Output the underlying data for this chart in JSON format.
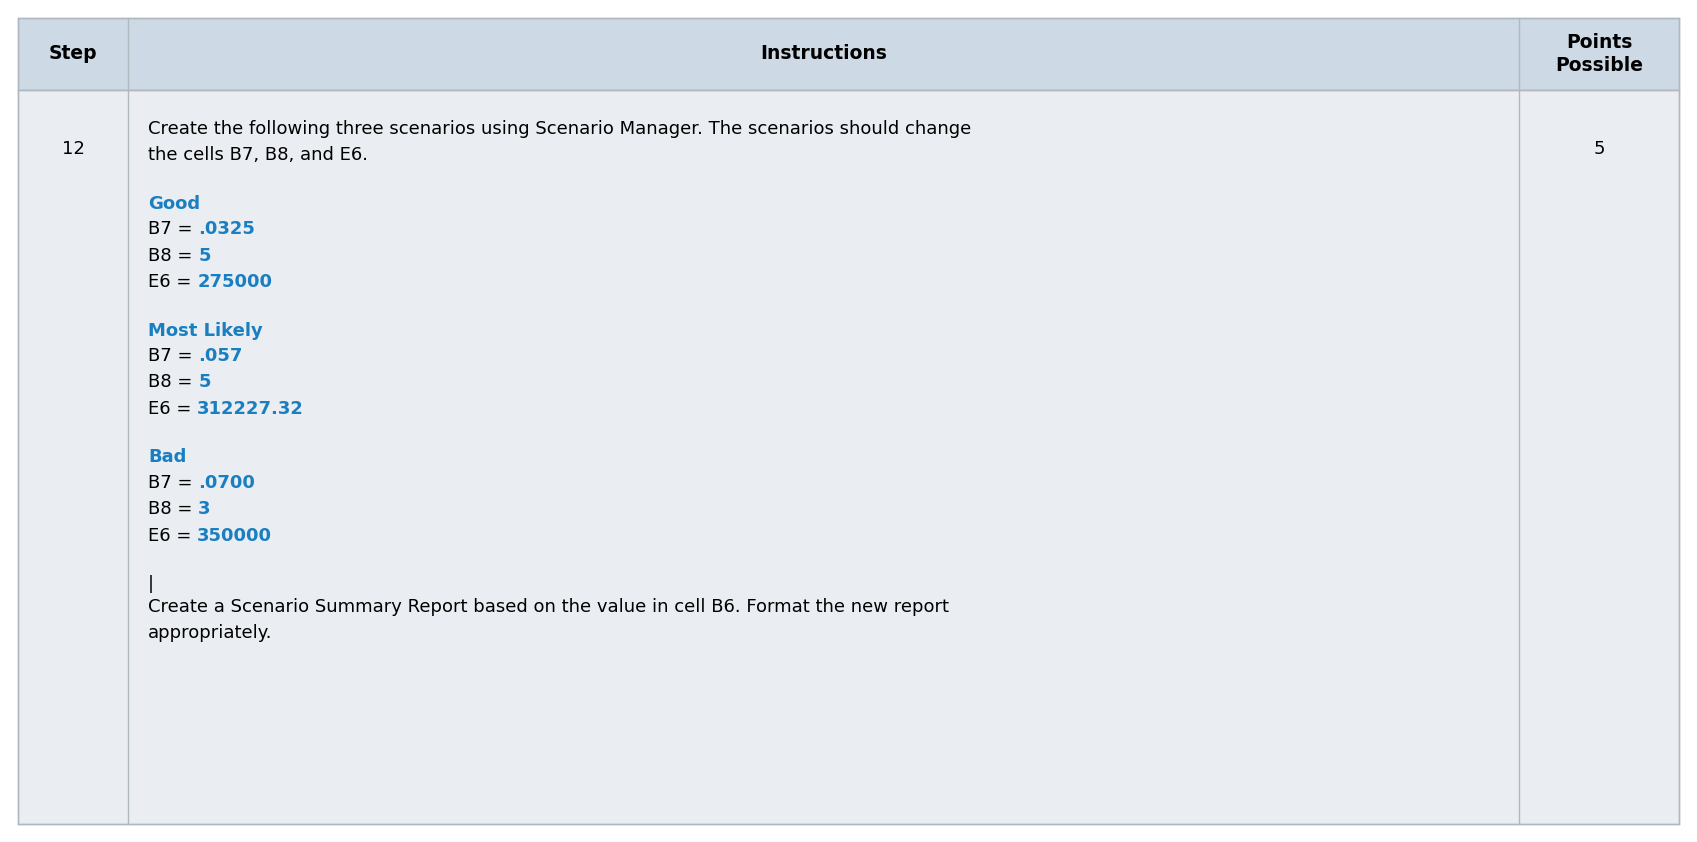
{
  "header_bg": "#cdd9e5",
  "row_bg": "#eaeef2",
  "white_bg": "#ffffff",
  "border_color": "#b0b8c0",
  "header_text_color": "#000000",
  "black_text_color": "#000000",
  "blue_color": "#1a7fc1",
  "header_step": "Step",
  "header_instructions": "Instructions",
  "header_points": "Points\nPossible",
  "step_number": "12",
  "points_value": "5",
  "intro_line1": "Create the following three scenarios using Scenario Manager. The scenarios should change",
  "intro_line2": "the cells B7, B8, and E6.",
  "scenario1_title": "Good",
  "scenario2_title": "Most Likely",
  "scenario3_title": "Bad",
  "scenarios": [
    {
      "title": "Good",
      "rows": [
        {
          "prefix": "B7 = ",
          "value": ".0325"
        },
        {
          "prefix": "B8 = ",
          "value": "5"
        },
        {
          "prefix": "E6 = ",
          "value": "275000"
        }
      ]
    },
    {
      "title": "Most Likely",
      "rows": [
        {
          "prefix": "B7 = ",
          "value": ".057"
        },
        {
          "prefix": "B8 = ",
          "value": "5"
        },
        {
          "prefix": "E6 = ",
          "value": "312227.32"
        }
      ]
    },
    {
      "title": "Bad",
      "rows": [
        {
          "prefix": "B7 = ",
          "value": ".0700"
        },
        {
          "prefix": "B8 = ",
          "value": "3"
        },
        {
          "prefix": "E6 = ",
          "value": "350000"
        }
      ]
    }
  ],
  "footer_line1": "Create a Scenario Summary Report based on the value in cell B6. Format the new report",
  "footer_line2": "appropriately.",
  "figsize": [
    16.97,
    8.42
  ],
  "dpi": 100
}
